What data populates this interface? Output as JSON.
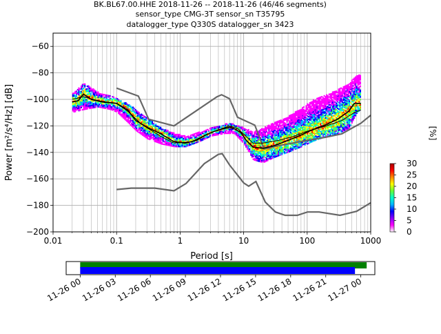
{
  "chart_data": [
    {
      "type": "heatmap",
      "title_lines": [
        "BK.BL67.00.HHE   2018-11-26 -- 2018-11-26  (46/46 segments)",
        "sensor_type CMG-3T sensor_sn T35795",
        "datalogger_type Q330S datalogger_sn 3423"
      ],
      "xlabel": "Period [s]",
      "ylabel": "Power [m²/s⁴/Hz] [dB]",
      "x_scale": "log",
      "xlim": [
        0.01,
        1000
      ],
      "ylim": [
        -200,
        -50
      ],
      "x_ticks": [
        {
          "value": 0.01,
          "label": "0.01"
        },
        {
          "value": 0.1,
          "label": "0.1"
        },
        {
          "value": 1,
          "label": "1"
        },
        {
          "value": 10,
          "label": "10"
        },
        {
          "value": 100,
          "label": "100"
        },
        {
          "value": 1000,
          "label": "1000"
        }
      ],
      "y_ticks": [
        {
          "value": -60,
          "label": "−60"
        },
        {
          "value": -80,
          "label": "−80"
        },
        {
          "value": -100,
          "label": "−100"
        },
        {
          "value": -120,
          "label": "−120"
        },
        {
          "value": -140,
          "label": "−140"
        },
        {
          "value": -160,
          "label": "−160"
        },
        {
          "value": -180,
          "label": "−180"
        },
        {
          "value": -200,
          "label": "−200"
        }
      ],
      "grid": true,
      "high_noise_model": [
        [
          0.1,
          -91.5
        ],
        [
          0.22,
          -97.5
        ],
        [
          0.32,
          -115
        ],
        [
          0.8,
          -120
        ],
        [
          3.8,
          -98
        ],
        [
          4.5,
          -96.5
        ],
        [
          6,
          -99.5
        ],
        [
          8,
          -113.5
        ],
        [
          15,
          -119.5
        ],
        [
          21,
          -137.5
        ],
        [
          35,
          -135
        ],
        [
          100,
          -131
        ],
        [
          200,
          -128.5
        ],
        [
          350,
          -126
        ],
        [
          700,
          -118
        ],
        [
          1000,
          -112
        ]
      ],
      "low_noise_model": [
        [
          0.1,
          -168
        ],
        [
          0.17,
          -167
        ],
        [
          0.4,
          -167
        ],
        [
          0.8,
          -169
        ],
        [
          1.24,
          -163.5
        ],
        [
          2.4,
          -148.5
        ],
        [
          4,
          -141.5
        ],
        [
          4.6,
          -141
        ],
        [
          6,
          -149.5
        ],
        [
          10,
          -163
        ],
        [
          12,
          -165.5
        ],
        [
          15.6,
          -162
        ],
        [
          21.9,
          -177.5
        ],
        [
          31.6,
          -185
        ],
        [
          45,
          -187.5
        ],
        [
          70,
          -187.5
        ],
        [
          101,
          -185
        ],
        [
          154,
          -185
        ],
        [
          328,
          -187.5
        ],
        [
          600,
          -184.5
        ],
        [
          1000,
          -178
        ]
      ],
      "mode_line": [
        [
          0.02,
          -102
        ],
        [
          0.025,
          -101
        ],
        [
          0.03,
          -96
        ],
        [
          0.04,
          -100
        ],
        [
          0.06,
          -102
        ],
        [
          0.1,
          -103
        ],
        [
          0.15,
          -108
        ],
        [
          0.2,
          -116
        ],
        [
          0.3,
          -121
        ],
        [
          0.5,
          -126
        ],
        [
          0.8,
          -132
        ],
        [
          1.2,
          -133
        ],
        [
          1.8,
          -131
        ],
        [
          2.5,
          -127
        ],
        [
          3.5,
          -124
        ],
        [
          5,
          -122
        ],
        [
          6,
          -121
        ],
        [
          7,
          -122
        ],
        [
          9,
          -125
        ],
        [
          11,
          -131
        ],
        [
          14,
          -136
        ],
        [
          20,
          -137
        ],
        [
          30,
          -135
        ],
        [
          50,
          -131
        ],
        [
          80,
          -127
        ],
        [
          120,
          -123
        ],
        [
          200,
          -119
        ],
        [
          300,
          -115
        ],
        [
          450,
          -109
        ],
        [
          550,
          -103
        ],
        [
          700,
          -103
        ]
      ],
      "mean_line": [
        [
          0.02,
          -100
        ],
        [
          0.03,
          -98
        ],
        [
          0.05,
          -101
        ],
        [
          0.1,
          -103
        ],
        [
          0.15,
          -109
        ],
        [
          0.25,
          -119
        ],
        [
          0.5,
          -128
        ],
        [
          0.8,
          -133
        ],
        [
          1.5,
          -132
        ],
        [
          2.5,
          -127
        ],
        [
          4,
          -123
        ],
        [
          6,
          -120
        ],
        [
          8,
          -122
        ],
        [
          11,
          -128
        ],
        [
          14,
          -133
        ],
        [
          20,
          -133
        ],
        [
          35,
          -131
        ],
        [
          60,
          -128
        ],
        [
          100,
          -124
        ],
        [
          200,
          -120
        ],
        [
          350,
          -116
        ],
        [
          550,
          -110
        ],
        [
          700,
          -108
        ]
      ],
      "density_band": [
        [
          0.02,
          -96,
          -110
        ],
        [
          0.03,
          -88,
          -108
        ],
        [
          0.05,
          -95,
          -106
        ],
        [
          0.08,
          -98,
          -108
        ],
        [
          0.1,
          -100,
          -110
        ],
        [
          0.15,
          -104,
          -118
        ],
        [
          0.2,
          -108,
          -124
        ],
        [
          0.3,
          -115,
          -130
        ],
        [
          0.5,
          -122,
          -134
        ],
        [
          0.8,
          -126,
          -136
        ],
        [
          1.2,
          -128,
          -136
        ],
        [
          2,
          -125,
          -132
        ],
        [
          3,
          -122,
          -128
        ],
        [
          5,
          -119,
          -126
        ],
        [
          7,
          -119,
          -126
        ],
        [
          10,
          -122,
          -134
        ],
        [
          14,
          -125,
          -146
        ],
        [
          20,
          -122,
          -148
        ],
        [
          30,
          -118,
          -144
        ],
        [
          50,
          -113,
          -140
        ],
        [
          80,
          -107,
          -136
        ],
        [
          120,
          -101,
          -132
        ],
        [
          200,
          -97,
          -128
        ],
        [
          300,
          -93,
          -126
        ],
        [
          450,
          -88,
          -122
        ],
        [
          600,
          -82,
          -110
        ],
        [
          700,
          -82,
          -108
        ]
      ],
      "colorbar": {
        "label": "[%]",
        "range": [
          0,
          30
        ],
        "ticks": [
          "0",
          "5",
          "10",
          "15",
          "20",
          "25",
          "30"
        ],
        "colors": [
          "#ffffff",
          "#ff00ff",
          "#8800ff",
          "#0000ff",
          "#00b4ff",
          "#00ffcc",
          "#66ff33",
          "#ffff00",
          "#ff8800",
          "#ff0000",
          "#aa0000"
        ]
      }
    },
    {
      "type": "bar",
      "title": "",
      "x_ticks": [
        "11-26 00",
        "11-26 03",
        "11-26 06",
        "11-26 09",
        "11-26 12",
        "11-26 15",
        "11-26 18",
        "11-26 21",
        "11-27 00"
      ],
      "xlim_hours": [
        -1.2,
        25.2
      ],
      "series": [
        {
          "color": "#008000",
          "start_hour": 0,
          "end_hour": 24.5
        },
        {
          "color": "#0000ff",
          "start_hour": 0,
          "end_hour": 23.5
        }
      ]
    }
  ]
}
